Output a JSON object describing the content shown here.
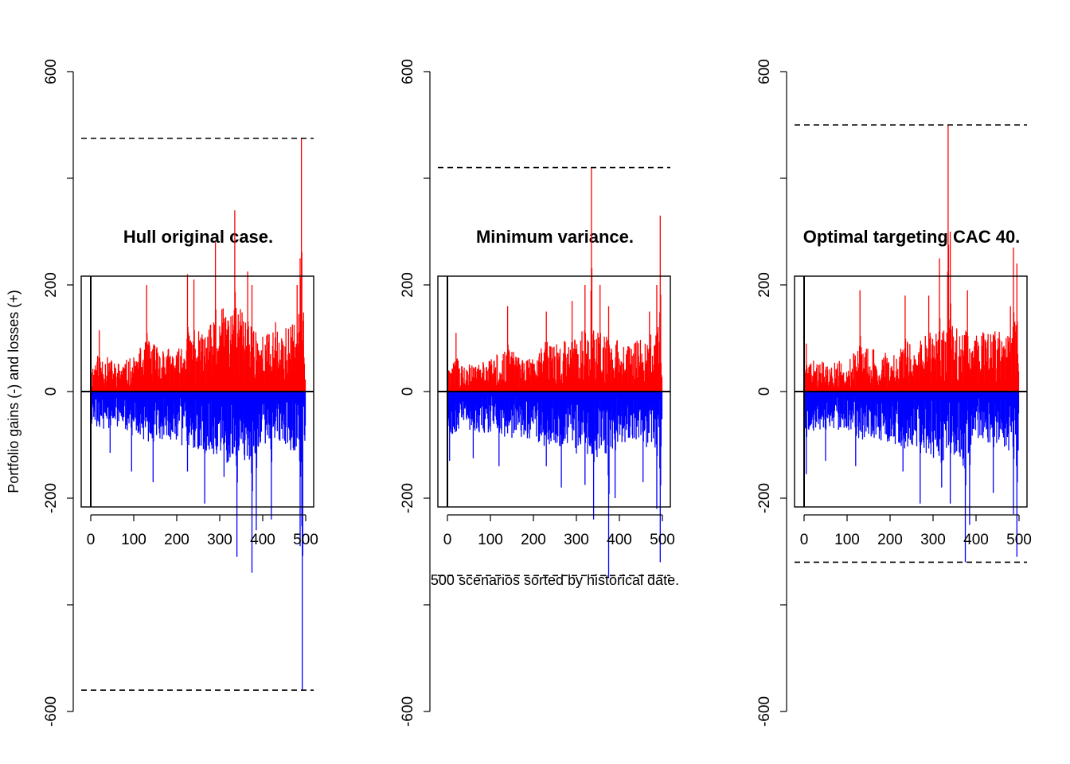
{
  "figure": {
    "ylabel": "Portfolio gains (-) and losses (+)",
    "xlabel": "500 scenarios sorted by historical date.",
    "colors": {
      "losses": "#ff0000",
      "gains": "#0000ff",
      "axis": "#000000"
    }
  },
  "chart_data": [
    {
      "type": "bar",
      "title": "Hull original case.",
      "xlabel": "500 scenarios sorted by historical date.",
      "ylabel": "Portfolio gains (-) and losses (+)",
      "xlim": [
        0,
        500
      ],
      "ylim": [
        -650,
        650
      ],
      "xticks": [
        0,
        100,
        200,
        300,
        400,
        500
      ],
      "yticks": [
        -600,
        -400,
        -200,
        0,
        200,
        400,
        600
      ],
      "ytick_labels": [
        "-600",
        "",
        "-200",
        "0",
        "200",
        "",
        "600"
      ],
      "hlines": [
        475,
        -560
      ],
      "grid": false,
      "profile": {
        "x": [
          0,
          20,
          60,
          100,
          130,
          165,
          200,
          230,
          265,
          290,
          320,
          340,
          370,
          400,
          450,
          480,
          493,
          500
        ],
        "losses": [
          45,
          75,
          55,
          65,
          100,
          90,
          75,
          120,
          110,
          140,
          170,
          160,
          140,
          110,
          120,
          140,
          160,
          120
        ],
        "gains": [
          -70,
          -70,
          -70,
          -75,
          -95,
          -90,
          -95,
          -110,
          -110,
          -120,
          -140,
          -130,
          -145,
          -100,
          -100,
          -120,
          -140,
          -110
        ]
      },
      "peaks": {
        "losses": [
          [
            20,
            115
          ],
          [
            130,
            200
          ],
          [
            225,
            220
          ],
          [
            240,
            210
          ],
          [
            290,
            280
          ],
          [
            335,
            340
          ],
          [
            365,
            225
          ],
          [
            375,
            200
          ],
          [
            430,
            130
          ],
          [
            480,
            200
          ],
          [
            487,
            250
          ],
          [
            490,
            475
          ]
        ],
        "gains": [
          [
            45,
            -115
          ],
          [
            95,
            -150
          ],
          [
            145,
            -170
          ],
          [
            225,
            -150
          ],
          [
            265,
            -210
          ],
          [
            310,
            -160
          ],
          [
            340,
            -310
          ],
          [
            375,
            -340
          ],
          [
            385,
            -260
          ],
          [
            420,
            -240
          ],
          [
            487,
            -290
          ],
          [
            492,
            -560
          ]
        ]
      }
    },
    {
      "type": "bar",
      "title": "Minimum variance.",
      "xlabel": "500 scenarios sorted by historical date.",
      "ylabel": "Portfolio gains (-) and losses (+)",
      "xlim": [
        0,
        500
      ],
      "ylim": [
        -650,
        650
      ],
      "xticks": [
        0,
        100,
        200,
        300,
        400,
        500
      ],
      "yticks": [
        -600,
        -400,
        -200,
        0,
        200,
        400,
        600
      ],
      "ytick_labels": [
        "-600",
        "",
        "-200",
        "0",
        "200",
        "",
        "600"
      ],
      "hlines": [
        420,
        -345
      ],
      "grid": false,
      "profile": {
        "x": [
          0,
          20,
          60,
          100,
          130,
          165,
          200,
          230,
          265,
          290,
          320,
          340,
          370,
          400,
          450,
          480,
          493,
          500
        ],
        "losses": [
          40,
          65,
          50,
          60,
          80,
          75,
          65,
          95,
          90,
          110,
          120,
          120,
          110,
          95,
          100,
          110,
          130,
          100
        ],
        "gains": [
          -80,
          -80,
          -75,
          -80,
          -90,
          -85,
          -90,
          -105,
          -105,
          -115,
          -125,
          -120,
          -130,
          -95,
          -100,
          -120,
          -130,
          -110
        ]
      },
      "peaks": {
        "losses": [
          [
            20,
            110
          ],
          [
            140,
            160
          ],
          [
            230,
            150
          ],
          [
            290,
            170
          ],
          [
            320,
            200
          ],
          [
            335,
            420
          ],
          [
            355,
            200
          ],
          [
            375,
            160
          ],
          [
            470,
            150
          ],
          [
            487,
            200
          ],
          [
            495,
            330
          ]
        ],
        "gains": [
          [
            5,
            -130
          ],
          [
            60,
            -125
          ],
          [
            120,
            -140
          ],
          [
            230,
            -140
          ],
          [
            265,
            -180
          ],
          [
            320,
            -175
          ],
          [
            340,
            -240
          ],
          [
            375,
            -350
          ],
          [
            390,
            -200
          ],
          [
            455,
            -170
          ],
          [
            487,
            -220
          ],
          [
            495,
            -320
          ]
        ]
      }
    },
    {
      "type": "bar",
      "title": "Optimal targeting CAC 40.",
      "xlabel": "500 scenarios sorted by historical date.",
      "ylabel": "Portfolio gains (-) and losses (+)",
      "xlim": [
        0,
        500
      ],
      "ylim": [
        -650,
        650
      ],
      "xticks": [
        0,
        100,
        200,
        300,
        400,
        500
      ],
      "yticks": [
        -600,
        -400,
        -200,
        0,
        200,
        400,
        600
      ],
      "ytick_labels": [
        "-600",
        "",
        "-200",
        "0",
        "200",
        "",
        "600"
      ],
      "hlines": [
        500,
        -320
      ],
      "grid": false,
      "profile": {
        "x": [
          0,
          20,
          60,
          100,
          130,
          165,
          200,
          230,
          265,
          290,
          320,
          340,
          370,
          400,
          450,
          480,
          493,
          500
        ],
        "losses": [
          45,
          65,
          55,
          60,
          85,
          80,
          75,
          100,
          95,
          115,
          125,
          125,
          120,
          110,
          115,
          120,
          140,
          110
        ],
        "gains": [
          -75,
          -75,
          -70,
          -75,
          -95,
          -90,
          -95,
          -110,
          -105,
          -120,
          -135,
          -130,
          -140,
          -100,
          -100,
          -120,
          -135,
          -110
        ]
      },
      "peaks": {
        "losses": [
          [
            5,
            90
          ],
          [
            130,
            190
          ],
          [
            235,
            180
          ],
          [
            290,
            180
          ],
          [
            315,
            250
          ],
          [
            335,
            500
          ],
          [
            340,
            300
          ],
          [
            380,
            190
          ],
          [
            480,
            160
          ],
          [
            487,
            270
          ],
          [
            495,
            240
          ]
        ],
        "gains": [
          [
            5,
            -155
          ],
          [
            50,
            -130
          ],
          [
            120,
            -140
          ],
          [
            230,
            -150
          ],
          [
            270,
            -210
          ],
          [
            320,
            -180
          ],
          [
            340,
            -210
          ],
          [
            375,
            -320
          ],
          [
            385,
            -250
          ],
          [
            440,
            -190
          ],
          [
            487,
            -230
          ],
          [
            495,
            -310
          ]
        ]
      }
    }
  ]
}
